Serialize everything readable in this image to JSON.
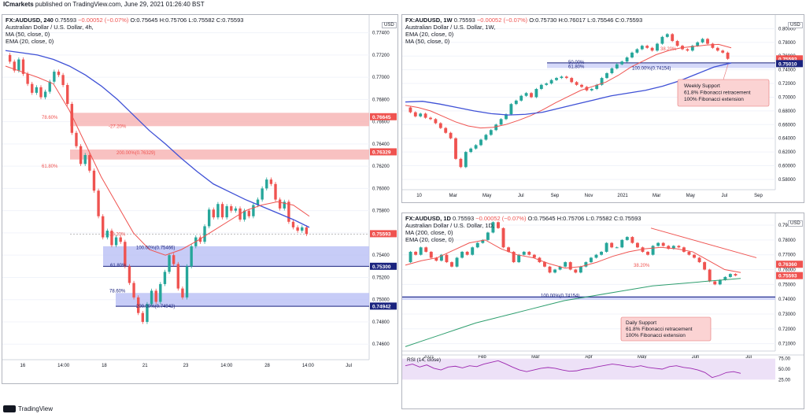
{
  "header": {
    "broker": "ICmarkets",
    "published": "published on TradingView.com, June 29, 2021 01:26:40 BST"
  },
  "footer": {
    "brand": "TradingView"
  },
  "colors": {
    "up": "#26a69a",
    "down": "#ef5350",
    "ma": "#3f51d6",
    "ema": "#ef5350",
    "ma200": "#2e9e6e",
    "zone_red": "#f7b6b6",
    "zone_blue": "#b9bff5",
    "rsi": "#9c27b0"
  },
  "charts": [
    {
      "id": "left",
      "symbol": "FX:AUDUSD, 240",
      "ohlc": {
        "o": "O:0.75645",
        "h": "H:0.75706",
        "l": "L:0.75582",
        "c": "C:0.75593",
        "last": "0.75593",
        "chg": "−0.00052 (−0.07%)"
      },
      "title": "Australian Dollar / U.S. Dollar, 4h,",
      "indicators": [
        "MA (50, close, 0)",
        "EMA (20, close, 0)"
      ],
      "price_badges": [
        "0.76645",
        "0.76329",
        "0.75593",
        "0.75300",
        "0.74942"
      ],
      "fib_labels": [
        "78.60%",
        "-27.20%",
        "200.00%(0.76329)",
        "61.80%",
        "38.20%",
        "100.00%(0.75466)",
        "61.80%",
        "78.60%",
        "200.00%(0.74942)"
      ],
      "currency": "USD"
    },
    {
      "id": "weekly",
      "symbol": "FX:AUDUSD, 1W",
      "ohlc": {
        "o": "O:0.75730",
        "h": "H:0.76017",
        "l": "L:0.75546",
        "c": "C:0.75593",
        "last": "0.75593",
        "chg": "−0.00052 (−0.07%)"
      },
      "title": "Australian Dollar / U.S. Dollar, 1W,",
      "indicators": [
        "EMA (20, close, 0)",
        "MA (50, close, 0)"
      ],
      "price_badges": [
        "0.75593",
        "0.75010"
      ],
      "fib_labels": [
        "38.20%",
        "50.00%",
        "61.80%",
        "100.00%(0.74154)"
      ],
      "annotation": [
        "Weekly Support",
        "61.8% Fibonacci retracement",
        "100% Fibonacci extension"
      ],
      "currency": "USD"
    },
    {
      "id": "daily",
      "symbol": "FX:AUDUSD, 1D",
      "ohlc": {
        "o": "O:0.75645",
        "h": "H:0.75706",
        "l": "L:0.75582",
        "c": "C:0.75593",
        "last": "0.75593",
        "chg": "−0.00052 (−0.07%)"
      },
      "title": "Australian Dollar / U.S. Dollar, 1D,",
      "indicators": [
        "MA (200, close, 0)",
        "EMA (20, close, 0)"
      ],
      "price_badges": [
        "0.76360",
        "0.75593"
      ],
      "fib_labels": [
        "38.20%",
        "100.00%(0.74154)"
      ],
      "annotation": [
        "Daily Support",
        "61.8% Fibonacci retracement",
        "100% Fibonacci extension"
      ],
      "rsi_label": "RSI (14, close)",
      "currency": "USD"
    }
  ],
  "chart_data": [
    {
      "type": "line",
      "title": "Australian Dollar / U.S. Dollar, 4h",
      "x_ticks": [
        "16",
        "14:00",
        "18",
        "21",
        "23",
        "14:00",
        "28",
        "14:00",
        "Jul"
      ],
      "y_ticks": [
        "0.77400",
        "0.77200",
        "0.77000",
        "0.76800",
        "0.76600",
        "0.76400",
        "0.76200",
        "0.76000",
        "0.75800",
        "0.75600",
        "0.75400",
        "0.75200",
        "0.75000",
        "0.74800",
        "0.74600"
      ],
      "ylim": [
        0.7446,
        0.7756
      ],
      "series": [
        {
          "name": "AUDUSD",
          "values": [
            0.772,
            0.7714,
            0.7706,
            0.7716,
            0.7703,
            0.7694,
            0.7686,
            0.7691,
            0.7682,
            0.7687,
            0.7696,
            0.7705,
            0.7702,
            0.7693,
            0.7676,
            0.765,
            0.7638,
            0.7622,
            0.763,
            0.7616,
            0.7598,
            0.7575,
            0.7556,
            0.7562,
            0.7549,
            0.7556,
            0.7552,
            0.753,
            0.7515,
            0.7502,
            0.7488,
            0.748,
            0.7496,
            0.7508,
            0.7498,
            0.7514,
            0.7525,
            0.754,
            0.7532,
            0.751,
            0.7502,
            0.753,
            0.7548,
            0.7556,
            0.7552,
            0.7566,
            0.7581,
            0.7574,
            0.7586,
            0.7574,
            0.7584,
            0.758,
            0.7582,
            0.7572,
            0.758,
            0.7575,
            0.7585,
            0.759,
            0.76,
            0.7608,
            0.7604,
            0.759,
            0.7582,
            0.7588,
            0.757,
            0.7565,
            0.7562,
            0.7565,
            0.7559
          ]
        },
        {
          "name": "MA (50, close, 0)",
          "values": [
            0.7724,
            0.7722,
            0.772,
            0.7716,
            0.771,
            0.7702,
            0.7692,
            0.768,
            0.7666,
            0.7652,
            0.764,
            0.7627,
            0.7615,
            0.7604,
            0.7597,
            0.759,
            0.7584,
            0.7578,
            0.7572,
            0.7565
          ]
        },
        {
          "name": "EMA (20, close, 0)",
          "values": [
            0.771,
            0.7705,
            0.77,
            0.7694,
            0.767,
            0.764,
            0.761,
            0.7585,
            0.756,
            0.7545,
            0.754,
            0.7545,
            0.7553,
            0.7562,
            0.7571,
            0.758,
            0.7585,
            0.7588,
            0.7585,
            0.7575
          ]
        }
      ]
    },
    {
      "type": "line",
      "title": "Australian Dollar / U.S. Dollar, 1W",
      "x_ticks": [
        "10",
        "Mar",
        "May",
        "Jul",
        "Sep",
        "Nov",
        "2021",
        "Mar",
        "May",
        "Jul",
        "Sep"
      ],
      "y_ticks": [
        "0.80000",
        "0.78000",
        "0.76000",
        "0.74000",
        "0.72000",
        "0.70000",
        "0.68000",
        "0.66000",
        "0.64000",
        "0.62000",
        "0.60000",
        "0.58000"
      ],
      "ylim": [
        0.565,
        0.82
      ],
      "series": [
        {
          "name": "AUDUSD",
          "values": [
            0.685,
            0.678,
            0.672,
            0.676,
            0.67,
            0.668,
            0.662,
            0.655,
            0.648,
            0.64,
            0.61,
            0.598,
            0.62,
            0.625,
            0.63,
            0.638,
            0.645,
            0.652,
            0.66,
            0.668,
            0.675,
            0.69,
            0.695,
            0.702,
            0.706,
            0.7,
            0.712,
            0.718,
            0.72,
            0.725,
            0.728,
            0.73,
            0.728,
            0.722,
            0.718,
            0.715,
            0.71,
            0.712,
            0.718,
            0.728,
            0.735,
            0.742,
            0.748,
            0.752,
            0.758,
            0.765,
            0.77,
            0.775,
            0.772,
            0.768,
            0.778,
            0.788,
            0.792,
            0.782,
            0.775,
            0.77,
            0.768,
            0.775,
            0.78,
            0.785,
            0.778,
            0.772,
            0.768,
            0.765,
            0.756
          ]
        },
        {
          "name": "EMA (20, close, 0)",
          "values": [
            0.688,
            0.685,
            0.68,
            0.672,
            0.664,
            0.658,
            0.655,
            0.656,
            0.66,
            0.666,
            0.673,
            0.682,
            0.692,
            0.701,
            0.71,
            0.716,
            0.722,
            0.732,
            0.744,
            0.753,
            0.762,
            0.768,
            0.772,
            0.774,
            0.776,
            0.777,
            0.772
          ]
        },
        {
          "name": "MA (50, close, 0)",
          "values": [
            0.693,
            0.694,
            0.69,
            0.685,
            0.68,
            0.676,
            0.674,
            0.675,
            0.678,
            0.684,
            0.69,
            0.696,
            0.702,
            0.706,
            0.71,
            0.716,
            0.724,
            0.734,
            0.744,
            0.75
          ]
        }
      ]
    },
    {
      "type": "line",
      "title": "Australian Dollar / U.S. Dollar, 1D",
      "x_ticks": [
        "2021",
        "Feb",
        "Mar",
        "Apr",
        "May",
        "Jun",
        "Jul"
      ],
      "y_ticks": [
        "0.79000",
        "0.78000",
        "0.77000",
        "0.76000",
        "0.75000",
        "0.74000",
        "0.73000",
        "0.72000",
        "0.71000"
      ],
      "ylim": [
        0.705,
        0.798
      ],
      "series": [
        {
          "name": "AUDUSD",
          "values": [
            0.765,
            0.772,
            0.77,
            0.775,
            0.772,
            0.768,
            0.766,
            0.77,
            0.765,
            0.762,
            0.768,
            0.772,
            0.77,
            0.775,
            0.778,
            0.78,
            0.785,
            0.792,
            0.788,
            0.775,
            0.772,
            0.765,
            0.77,
            0.772,
            0.77,
            0.768,
            0.765,
            0.762,
            0.758,
            0.76,
            0.762,
            0.765,
            0.76,
            0.758,
            0.762,
            0.765,
            0.768,
            0.77,
            0.772,
            0.778,
            0.775,
            0.775,
            0.78,
            0.782,
            0.778,
            0.775,
            0.772,
            0.77,
            0.776,
            0.778,
            0.776,
            0.774,
            0.776,
            0.775,
            0.772,
            0.77,
            0.768,
            0.765,
            0.76,
            0.752,
            0.75,
            0.753,
            0.755,
            0.757,
            0.756
          ]
        },
        {
          "name": "MA (200, close, 0)",
          "values": [
            0.708,
            0.712,
            0.716,
            0.72,
            0.724,
            0.727,
            0.73,
            0.733,
            0.736,
            0.739,
            0.741,
            0.743,
            0.745,
            0.747,
            0.749,
            0.75,
            0.751,
            0.752,
            0.753,
            0.754
          ]
        },
        {
          "name": "EMA (20, close, 0)",
          "values": [
            0.763,
            0.766,
            0.768,
            0.773,
            0.778,
            0.78,
            0.774,
            0.77,
            0.768,
            0.764,
            0.761,
            0.762,
            0.765,
            0.769,
            0.772,
            0.774,
            0.775,
            0.774,
            0.772,
            0.766,
            0.76,
            0.758
          ]
        }
      ]
    },
    {
      "type": "line",
      "title": "RSI (14, close)",
      "x_ticks": [],
      "y_ticks": [
        "75.00",
        "50.00",
        "25.00"
      ],
      "ylim": [
        20,
        80
      ],
      "series": [
        {
          "name": "RSI (14, close)",
          "values": [
            58,
            62,
            55,
            60,
            52,
            48,
            55,
            57,
            53,
            58,
            56,
            62,
            66,
            70,
            63,
            55,
            48,
            44,
            48,
            52,
            54,
            52,
            48,
            45,
            46,
            50,
            52,
            56,
            59,
            62,
            60,
            57,
            55,
            58,
            54,
            52,
            50,
            56,
            58,
            54,
            52,
            48,
            42,
            30,
            35,
            42,
            44,
            40
          ]
        }
      ]
    }
  ]
}
